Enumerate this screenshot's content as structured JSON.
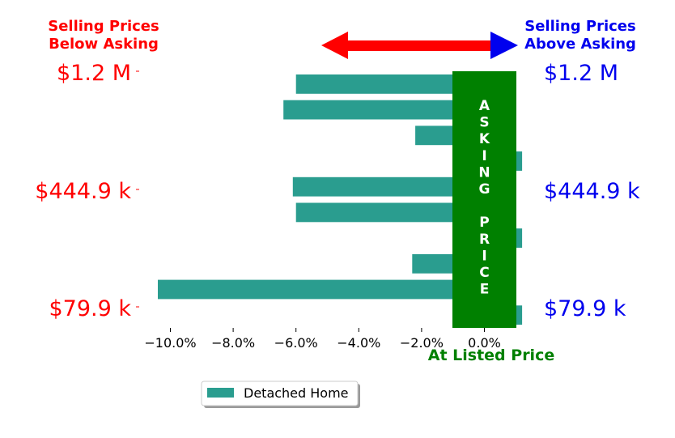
{
  "header": {
    "below_line1": "Selling Prices",
    "below_line2": "Below Asking",
    "above_line1": "Selling Prices",
    "above_line2": "Above Asking"
  },
  "price_labels": {
    "top": "$1.2 M",
    "mid": "$444.9 k",
    "bottom": "$79.9 k"
  },
  "asking_band_text": "ASKING PRICE",
  "listed_label": "At Listed Price",
  "colors": {
    "bar": "#2a9d8f",
    "band": "#008000",
    "arrow_left": "#ff0000",
    "arrow_right": "#0000ee",
    "below_text": "#ff0000",
    "above_text": "#0000ee"
  },
  "chart_data": {
    "type": "bar",
    "orientation": "horizontal",
    "series": [
      {
        "name": "Detached Home",
        "values": [
          -6.0,
          -6.4,
          -2.2,
          1.2,
          -6.1,
          -6.0,
          1.2,
          -2.3,
          -10.4,
          1.2
        ]
      }
    ],
    "xlim": [
      -11.0,
      1.2
    ],
    "xticks": [
      "−10.0%",
      "−8.0%",
      "−6.0%",
      "−4.0%",
      "−2.0%",
      "0.0%"
    ],
    "xtick_values": [
      -10,
      -8,
      -6,
      -4,
      -2,
      0
    ],
    "legend": "bottom-center",
    "grid": false
  }
}
